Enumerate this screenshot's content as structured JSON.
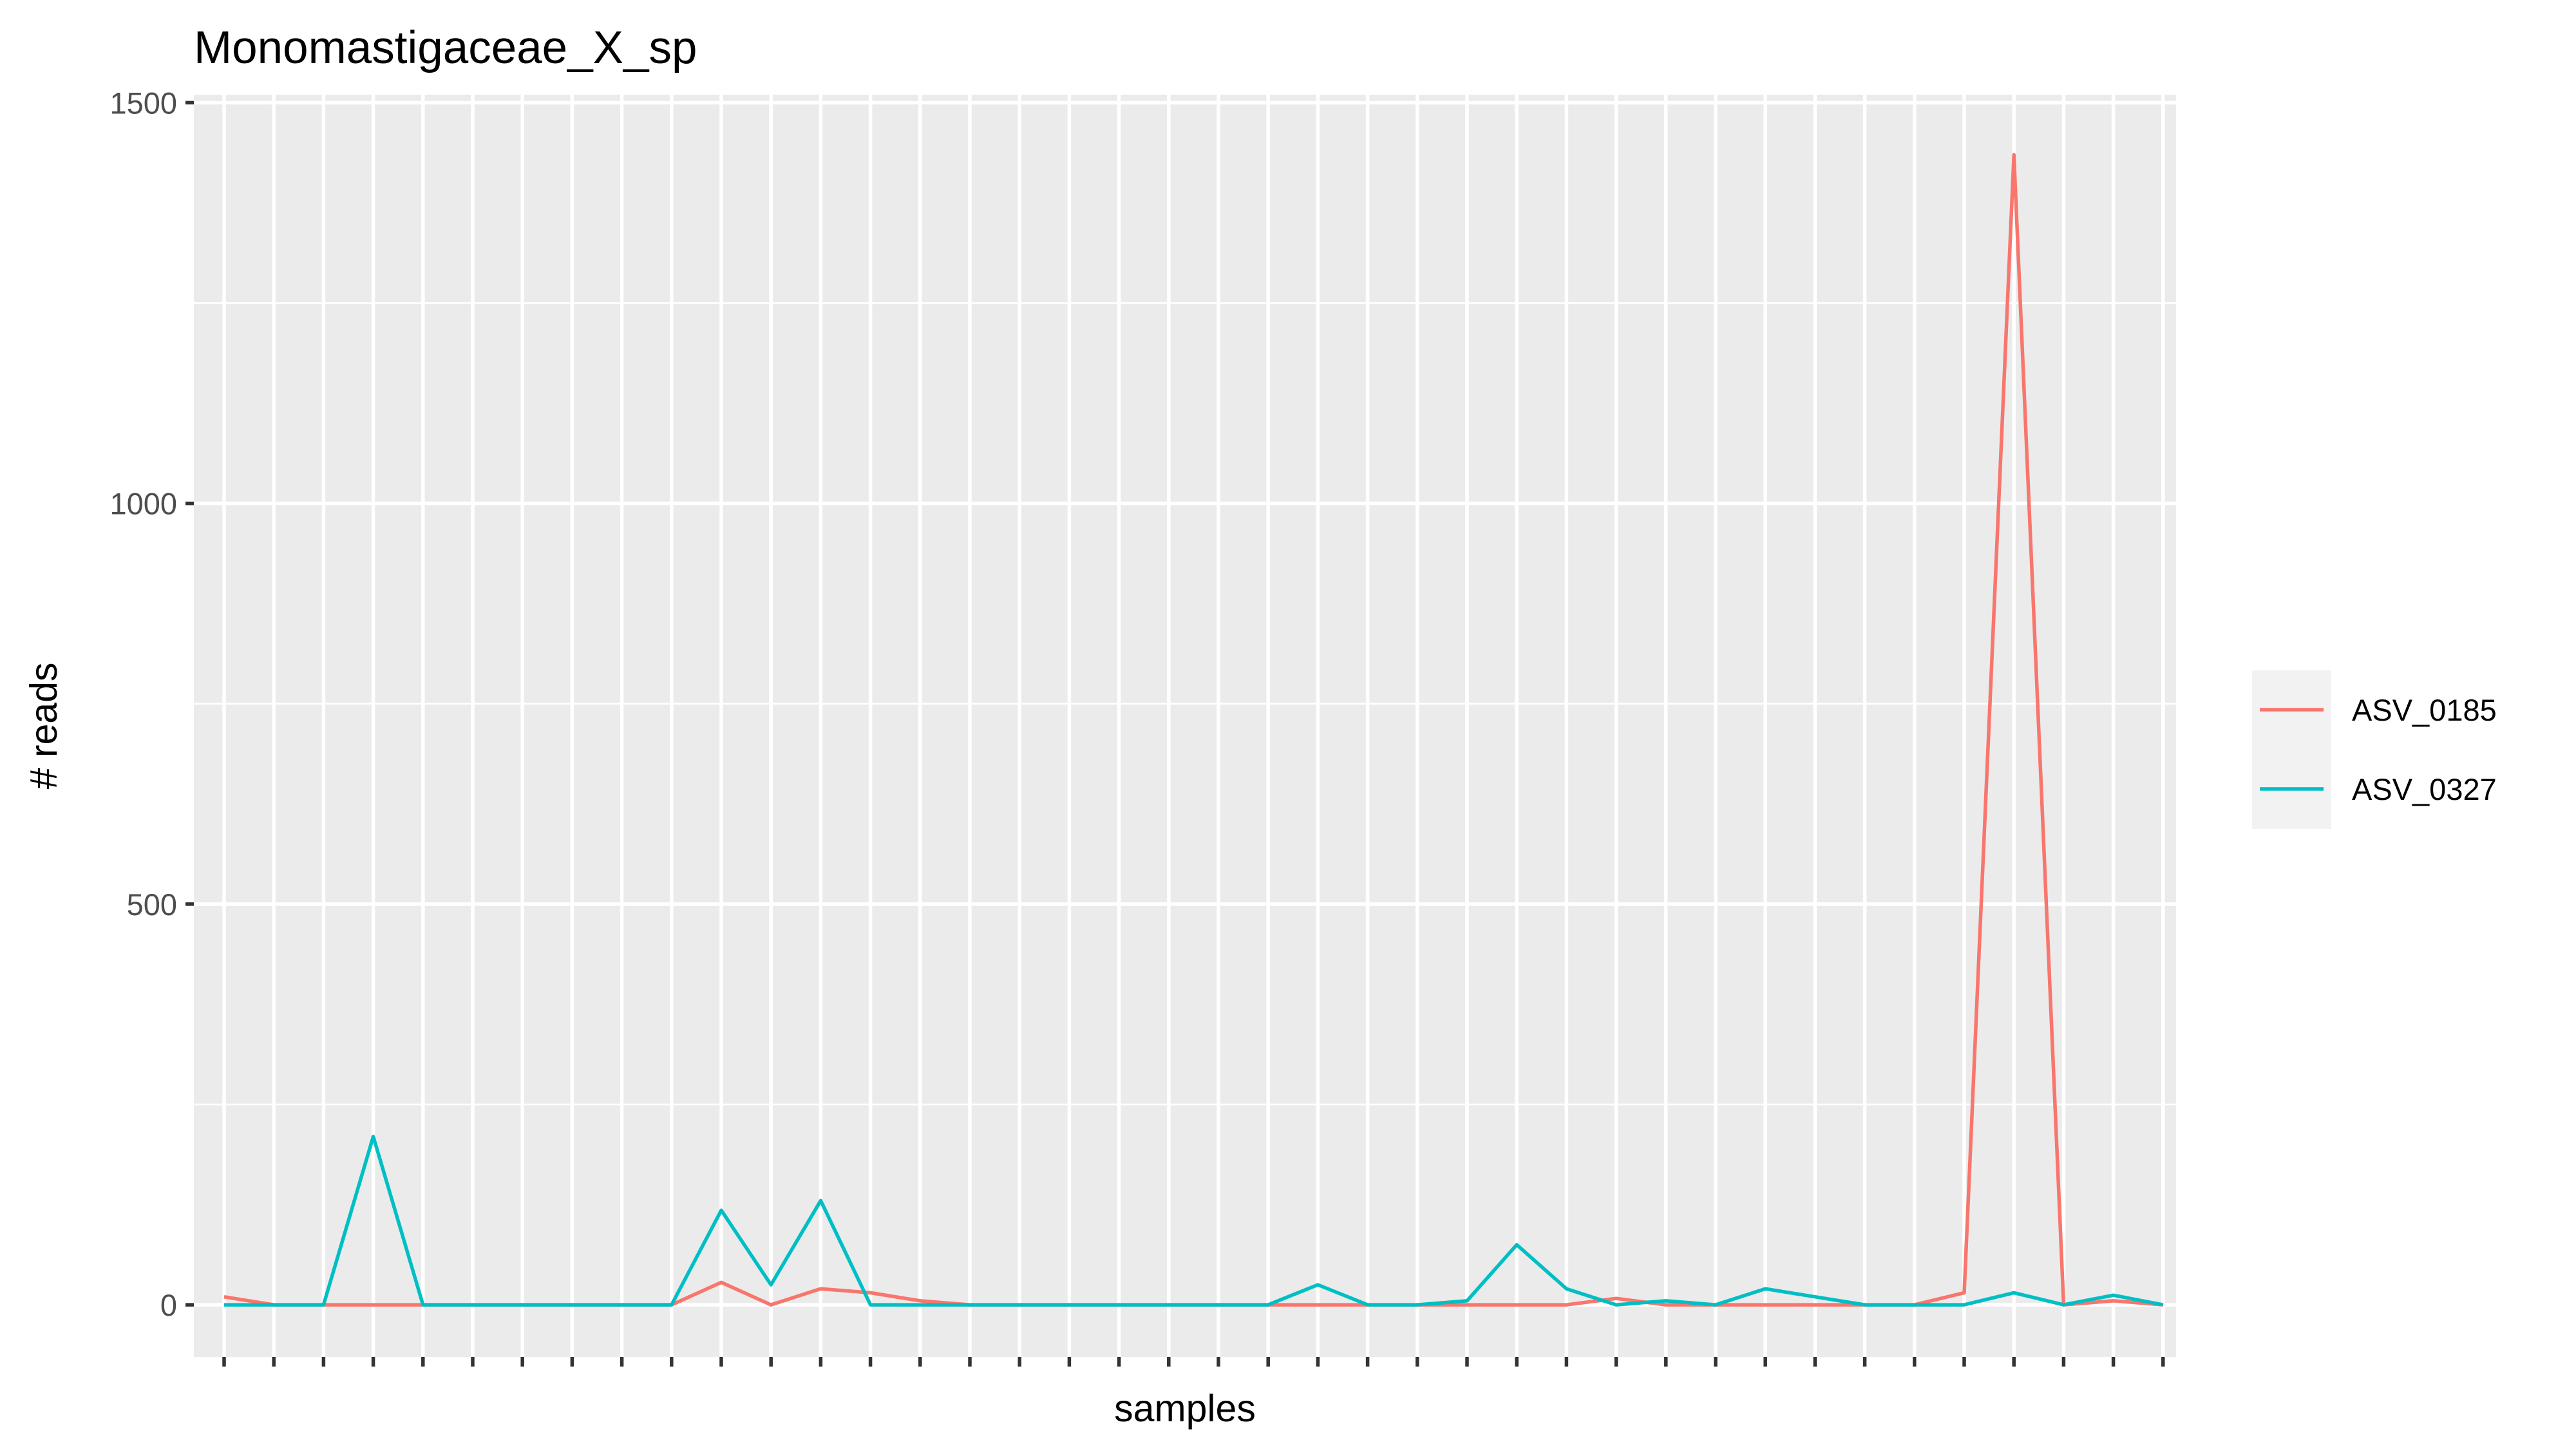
{
  "chart_data": {
    "type": "line",
    "title": "Monomastigaceae_X_sp",
    "xlabel": "samples",
    "ylabel": "# reads",
    "ylim": [
      -65,
      1510
    ],
    "y_ticks": [
      "0",
      "500",
      "1000",
      "1500"
    ],
    "grid": true,
    "legend_position": "right",
    "x": [
      1,
      2,
      3,
      4,
      5,
      6,
      7,
      8,
      9,
      10,
      11,
      12,
      13,
      14,
      15,
      16,
      17,
      18,
      19,
      20,
      21,
      22,
      23,
      24,
      25,
      26,
      27,
      28,
      29,
      30,
      31,
      32,
      33,
      34,
      35,
      36,
      37,
      38,
      39,
      40
    ],
    "series": [
      {
        "name": "ASV_0185",
        "color": "#F8766D",
        "values": [
          10,
          0,
          0,
          0,
          0,
          0,
          0,
          0,
          0,
          0,
          28,
          0,
          20,
          15,
          5,
          0,
          0,
          0,
          0,
          0,
          0,
          0,
          0,
          0,
          0,
          0,
          0,
          0,
          8,
          0,
          0,
          0,
          0,
          0,
          0,
          15,
          1435,
          0,
          5,
          0
        ]
      },
      {
        "name": "ASV_0327",
        "color": "#00BFC4",
        "values": [
          0,
          0,
          0,
          210,
          0,
          0,
          0,
          0,
          0,
          0,
          118,
          25,
          130,
          0,
          0,
          0,
          0,
          0,
          0,
          0,
          0,
          0,
          25,
          0,
          0,
          5,
          75,
          20,
          0,
          5,
          0,
          20,
          10,
          0,
          0,
          0,
          15,
          0,
          12,
          0
        ]
      }
    ]
  }
}
